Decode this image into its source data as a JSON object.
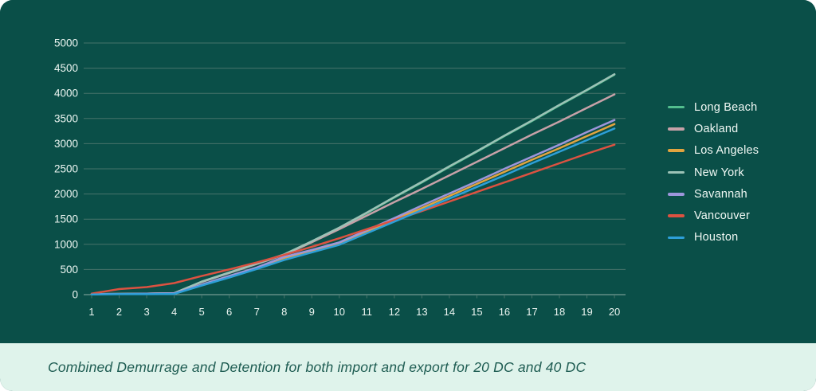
{
  "caption": {
    "text": "Combined Demurrage and Detention for both import and export for 20 DC and 40 DC"
  },
  "colors": {
    "background": "#0A4F48",
    "caption_bg": "#DFF3EB",
    "caption_text": "#1E5C52",
    "axis_text": "#EDF6F2",
    "legend_text": "#F0F8F4",
    "gridline": "#47736A",
    "zero_line": "#8FADA5"
  },
  "chart_data": {
    "type": "line",
    "title": "",
    "xlabel": "",
    "ylabel": "",
    "x": [
      1,
      2,
      3,
      4,
      5,
      6,
      7,
      8,
      9,
      10,
      11,
      12,
      13,
      14,
      15,
      16,
      17,
      18,
      19,
      20
    ],
    "ylim": [
      0,
      5000
    ],
    "ytick_step": 500,
    "grid": true,
    "legend_position": "right",
    "series": [
      {
        "name": "Long Beach",
        "color": "#53BE8E",
        "values": [
          10,
          15,
          20,
          30,
          255,
          435,
          615,
          795,
          1050,
          1320,
          1620,
          1930,
          2230,
          2540,
          2840,
          3150,
          3450,
          3760,
          4060,
          4370
        ]
      },
      {
        "name": "Oakland",
        "color": "#C7A1A8",
        "values": [
          10,
          15,
          20,
          30,
          250,
          430,
          610,
          790,
          1040,
          1300,
          1570,
          1840,
          2100,
          2370,
          2640,
          2910,
          3180,
          3440,
          3710,
          3980
        ]
      },
      {
        "name": "Los Angeles",
        "color": "#E2A43F",
        "values": [
          10,
          15,
          20,
          25,
          195,
          360,
          530,
          730,
          870,
          1010,
          1250,
          1490,
          1720,
          1960,
          2200,
          2440,
          2680,
          2910,
          3150,
          3390
        ]
      },
      {
        "name": "New York",
        "color": "#9CC2B6",
        "values": [
          10,
          15,
          20,
          30,
          260,
          440,
          620,
          800,
          1060,
          1330,
          1630,
          1940,
          2240,
          2550,
          2850,
          3160,
          3460,
          3770,
          4070,
          4380
        ]
      },
      {
        "name": "Savannah",
        "color": "#9D96DB",
        "values": [
          10,
          15,
          20,
          25,
          200,
          370,
          540,
          750,
          890,
          1040,
          1280,
          1520,
          1770,
          2010,
          2250,
          2500,
          2740,
          2980,
          3230,
          3470
        ]
      },
      {
        "name": "Vancouver",
        "color": "#DC5241",
        "values": [
          20,
          110,
          150,
          230,
          370,
          500,
          640,
          790,
          950,
          1120,
          1300,
          1480,
          1660,
          1850,
          2040,
          2230,
          2420,
          2610,
          2800,
          2980
        ]
      },
      {
        "name": "Houston",
        "color": "#2D9FD8",
        "values": [
          5,
          10,
          10,
          15,
          180,
          340,
          510,
          690,
          840,
          990,
          1220,
          1450,
          1680,
          1910,
          2140,
          2370,
          2610,
          2840,
          3070,
          3300
        ]
      }
    ]
  }
}
